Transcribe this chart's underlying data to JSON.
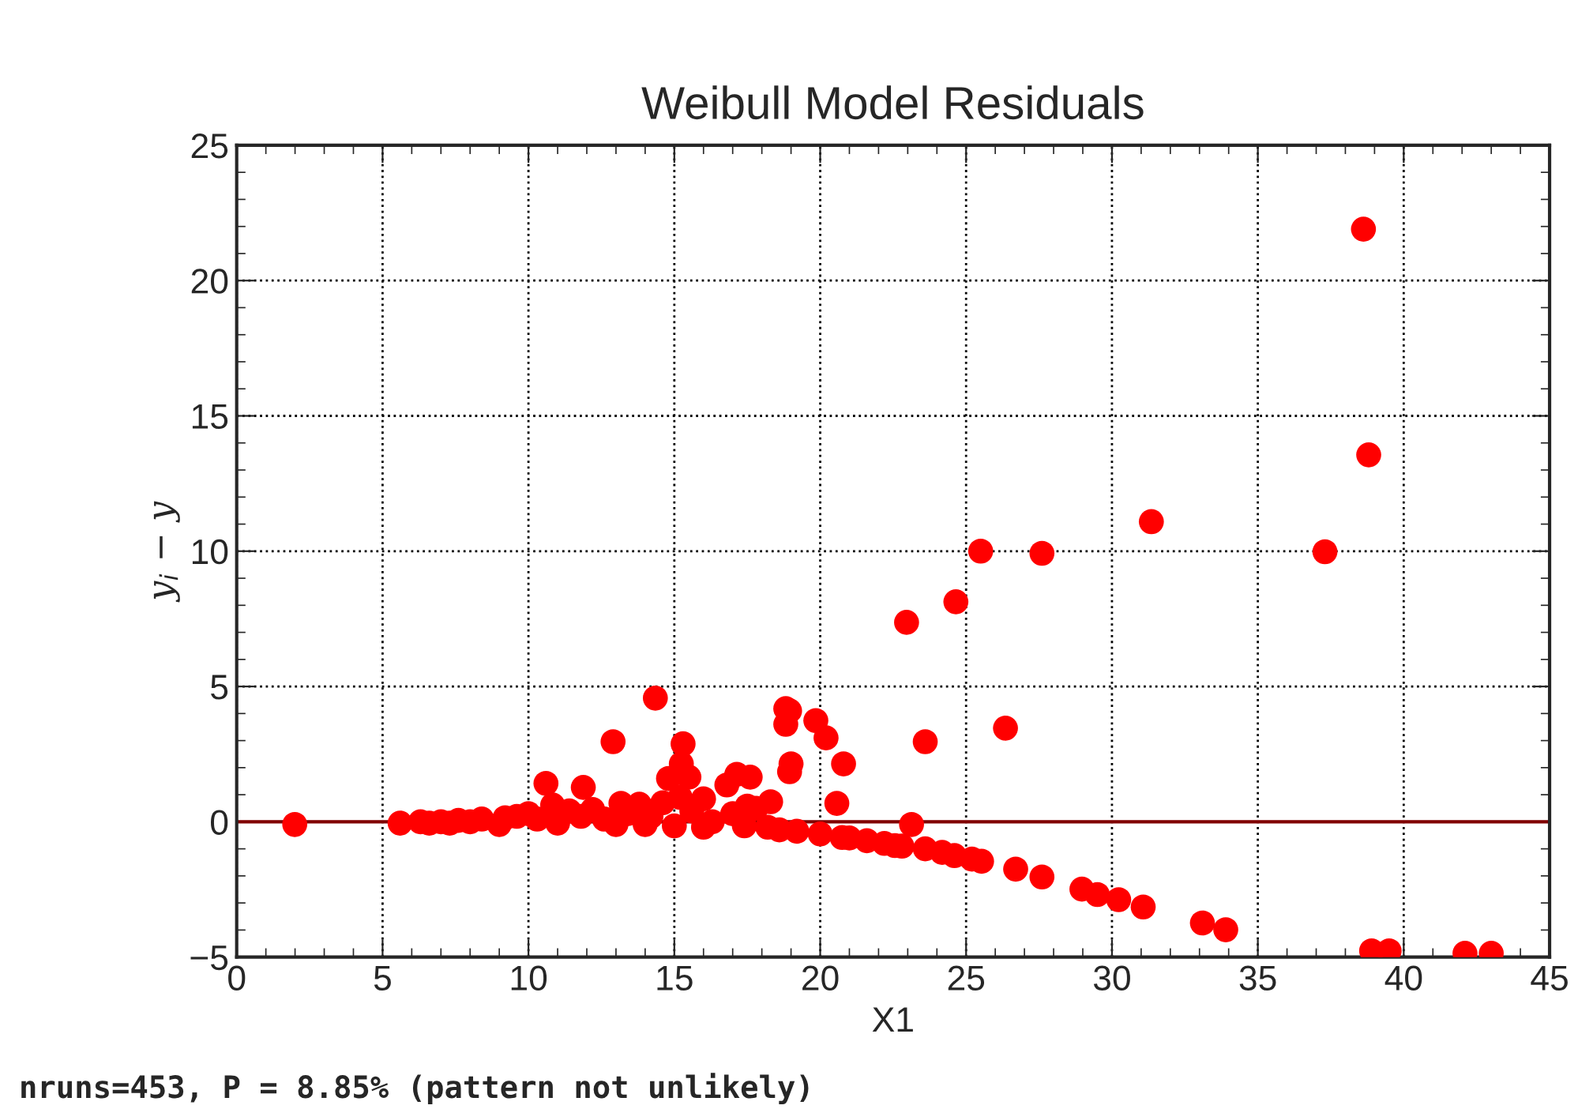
{
  "chart_data": {
    "type": "scatter",
    "title": "Weibull Model Residuals",
    "xlabel": "X1",
    "ylabel": "y$_{i}$ − y",
    "annotations": [
      "nruns=453, P = 8.85% (pattern not unlikely)"
    ],
    "xlim": [
      0,
      45
    ],
    "xticks": [
      0,
      5,
      10,
      15,
      20,
      25,
      30,
      35,
      40,
      45
    ],
    "ylim": [
      -5,
      25
    ],
    "yticks": [
      -5,
      0,
      5,
      10,
      15,
      20,
      25
    ],
    "grid": true,
    "marker": "circle",
    "ref_lines": [
      {
        "axis": "y",
        "value": 0,
        "color": "#800000"
      }
    ],
    "series": [
      {
        "color": "#ff0000",
        "x": [
          1.99,
          5.6,
          6.3,
          6.6,
          7.0,
          7.3,
          7.6,
          8.0,
          8.4,
          9.0,
          9.2,
          9.6,
          10.0,
          10.3,
          10.6,
          10.83,
          11.0,
          11.4,
          11.8,
          11.88,
          12.2,
          12.6,
          12.9,
          13.0,
          13.17,
          13.4,
          13.8,
          14.0,
          14.2,
          14.35,
          14.6,
          14.8,
          15.0,
          15.2,
          15.24,
          15.3,
          15.5,
          15.6,
          16.0,
          16.0,
          16.3,
          16.8,
          17.0,
          17.14,
          17.4,
          17.5,
          17.6,
          17.8,
          18.2,
          18.3,
          18.6,
          18.82,
          18.82,
          18.95,
          18.95,
          19.0,
          19.2,
          19.85,
          20.0,
          20.2,
          20.57,
          20.75,
          20.8,
          21.0,
          21.6,
          22.2,
          22.56,
          22.8,
          22.96,
          23.13,
          23.6,
          23.6,
          24.18,
          24.6,
          24.65,
          25.2,
          25.5,
          25.53,
          26.35,
          26.7,
          27.6,
          27.6,
          28.97,
          29.5,
          30.23,
          31.07,
          31.35,
          33.1,
          33.9,
          37.3,
          38.62,
          38.8,
          38.9,
          39.5,
          42.1,
          43.0
        ],
        "values": [
          -0.1,
          -0.05,
          0,
          -0.05,
          0,
          -0.05,
          0.05,
          0,
          0.1,
          -0.1,
          0.15,
          0.2,
          0.3,
          0.1,
          1.42,
          0.62,
          -0.05,
          0.4,
          0.2,
          1.27,
          0.45,
          0.1,
          2.96,
          -0.1,
          0.68,
          0.3,
          0.65,
          -0.1,
          0.2,
          4.57,
          0.7,
          1.6,
          -0.15,
          0.9,
          2.14,
          2.88,
          1.65,
          0.4,
          0.85,
          -0.2,
          0,
          1.36,
          0.3,
          1.75,
          -0.15,
          0.58,
          1.65,
          0.5,
          -0.2,
          0.74,
          -0.3,
          4.18,
          3.6,
          1.85,
          4.1,
          2.14,
          -0.35,
          3.74,
          -0.45,
          3.1,
          0.68,
          -0.58,
          2.14,
          -0.6,
          -0.7,
          -0.8,
          -0.88,
          -0.9,
          7.37,
          -0.1,
          2.96,
          -1.0,
          -1.13,
          -1.25,
          8.13,
          -1.38,
          10.0,
          -1.46,
          3.46,
          -1.75,
          9.92,
          -2.04,
          -2.49,
          -2.69,
          -2.88,
          -3.15,
          11.09,
          -3.74,
          -3.99,
          9.98,
          21.9,
          13.56,
          -4.77,
          -4.77,
          -4.86,
          -4.86
        ]
      }
    ]
  }
}
